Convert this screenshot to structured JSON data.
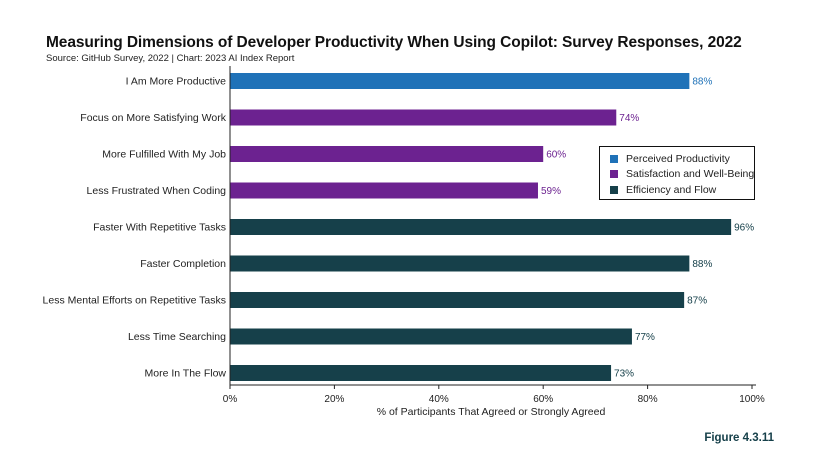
{
  "title": "Measuring Dimensions of Developer Productivity When Using Copilot: Survey Responses, 2022",
  "source": "Source: GitHub Survey, 2022 | Chart: 2023 AI Index Report",
  "figure_label": "Figure 4.3.11",
  "chart_data": {
    "type": "bar",
    "orientation": "horizontal",
    "categories": [
      "I Am More Productive",
      "Focus on More Satisfying Work",
      "More Fulfilled With My Job",
      "Less Frustrated When Coding",
      "Faster With Repetitive Tasks",
      "Faster Completion",
      "Less Mental Efforts on Repetitive Tasks",
      "Less Time Searching",
      "More In The Flow"
    ],
    "values": [
      88,
      74,
      60,
      59,
      96,
      88,
      87,
      77,
      73
    ],
    "value_labels": [
      "88%",
      "74%",
      "60%",
      "59%",
      "96%",
      "88%",
      "87%",
      "77%",
      "73%"
    ],
    "groups": [
      "Perceived Productivity",
      "Satisfaction and Well-Being",
      "Satisfaction and Well-Being",
      "Satisfaction and Well-Being",
      "Efficiency and Flow",
      "Efficiency and Flow",
      "Efficiency and Flow",
      "Efficiency and Flow",
      "Efficiency and Flow"
    ],
    "legend": [
      {
        "name": "Perceived Productivity",
        "color": "#1f72b8"
      },
      {
        "name": "Satisfaction and Well-Being",
        "color": "#6c2290"
      },
      {
        "name": "Efficiency and Flow",
        "color": "#16404a"
      }
    ],
    "legend_placement": "right",
    "xlabel": "% of Participants That Agreed or Strongly Agreed",
    "xlim": [
      0,
      100
    ],
    "xticks": [
      0,
      20,
      40,
      60,
      80,
      100
    ],
    "xtick_labels": [
      "0%",
      "20%",
      "40%",
      "60%",
      "80%",
      "100%"
    ],
    "grid": false
  }
}
